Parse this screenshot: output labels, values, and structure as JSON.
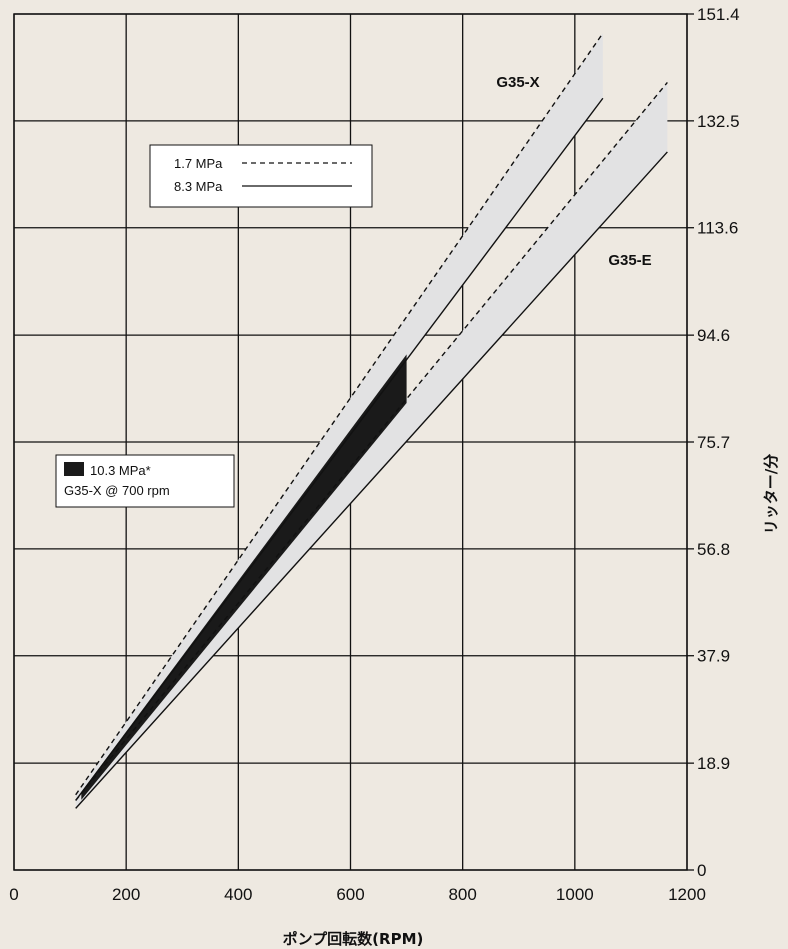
{
  "chart_data": {
    "type": "line",
    "xlabel": "ポンプ回転数(RPM)",
    "ylabel": "リッター/分",
    "xlim": [
      0,
      1200
    ],
    "ylim": [
      0,
      151.4
    ],
    "x_ticks": [
      "0",
      "200",
      "400",
      "600",
      "800",
      "1000",
      "1200"
    ],
    "y_ticks": [
      "0",
      "18.9",
      "37.9",
      "56.8",
      "75.7",
      "94.6",
      "113.6",
      "132.5",
      "151.4"
    ],
    "y_tick_values": [
      0,
      18.9,
      37.9,
      56.8,
      75.7,
      94.6,
      113.6,
      132.5,
      151.4
    ],
    "grid": true,
    "series": [
      {
        "name": "G35-X",
        "pressure": "1.7 MPa",
        "style": "dashed",
        "x": [
          110,
          1050
        ],
        "y": [
          13.3,
          148.0
        ]
      },
      {
        "name": "G35-X",
        "pressure": "8.3 MPa",
        "style": "solid",
        "x": [
          110,
          1050
        ],
        "y": [
          12.3,
          136.5
        ]
      },
      {
        "name": "G35-E",
        "pressure": "1.7 MPa",
        "style": "dashed",
        "x": [
          110,
          1165
        ],
        "y": [
          12.3,
          139.3
        ]
      },
      {
        "name": "G35-E",
        "pressure": "8.3 MPa",
        "style": "solid",
        "x": [
          110,
          1165
        ],
        "y": [
          10.9,
          127.0
        ]
      }
    ],
    "band_fill": "#e2e2e3",
    "highlight_band": {
      "name": "10.3 MPa* G35-X @ 700 rpm",
      "color": "#1a1a1a",
      "x_end": 700,
      "top": [
        [
          120,
          13.8
        ],
        [
          700,
          91.2
        ]
      ],
      "bottom": [
        [
          120,
          12.4
        ],
        [
          700,
          82.6
        ]
      ]
    },
    "series_labels": [
      {
        "text": "G35-X",
        "x": 905,
        "y": 140.5
      },
      {
        "text": "G35-E",
        "x": 1010,
        "y": 109.0
      }
    ],
    "legends": [
      {
        "placement": "upper-left",
        "entries": [
          {
            "label": "1.7 MPa",
            "style": "dashed"
          },
          {
            "label": "8.3 MPa",
            "style": "solid"
          }
        ]
      },
      {
        "placement": "middle-left",
        "entries": [
          {
            "label": "10.3 MPa*",
            "style": "filled"
          },
          {
            "label": "G35-X @ 700 rpm",
            "style": "none"
          }
        ]
      }
    ]
  }
}
